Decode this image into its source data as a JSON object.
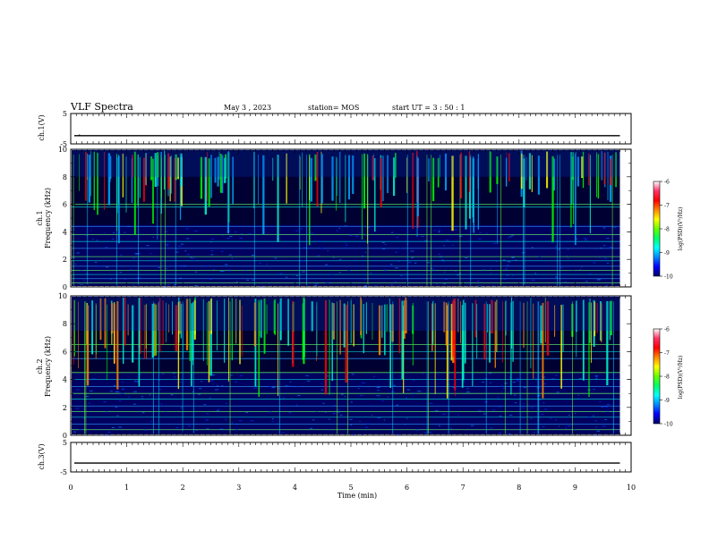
{
  "header": {
    "title": "VLF Spectra",
    "date": "May 3  , 2023",
    "station": "station= MOS",
    "start": "start  UT  =   3  : 50 : 1"
  },
  "chart_data": {
    "type": "heatmap",
    "title": "VLF Spectra",
    "xlabel": "Time  (min)",
    "xlim": [
      0,
      10
    ],
    "x_ticks": [
      "0",
      "1",
      "2",
      "3",
      "4",
      "5",
      "6",
      "7",
      "8",
      "9",
      "10"
    ],
    "data_end_min": 9.8,
    "panels": [
      {
        "name": "ch1-voltage",
        "ylabel": "ch.1(V)",
        "ylim": [
          -5,
          5
        ],
        "y_ticks": [
          "5",
          "-5"
        ],
        "level": -2.3,
        "marker": "•"
      },
      {
        "name": "ch1-spectrogram",
        "ylabel_line1": "ch.1",
        "ylabel_line2": "Frequency (kHz)",
        "ylim": [
          0,
          10
        ],
        "y_ticks": [
          "0",
          "2",
          "4",
          "6",
          "8",
          "10"
        ],
        "colorbar": {
          "label": "log(PSD)(V²/Hz)",
          "range": [
            -10,
            -6
          ],
          "ticks": [
            "-6",
            "-7",
            "-8",
            "-9",
            "-10"
          ]
        },
        "band_low_khz": 5.5,
        "line_freqs_khz": [
          0.3,
          0.6,
          0.9,
          1.2,
          1.5,
          1.9,
          2.2,
          2.8,
          3.3,
          3.8,
          4.4,
          5.8,
          6.0
        ]
      },
      {
        "name": "ch2-spectrogram",
        "ylabel_line1": "ch.2",
        "ylabel_line2": "Frequency (kHz)",
        "ylim": [
          0,
          10
        ],
        "y_ticks": [
          "0",
          "2",
          "4",
          "6",
          "8",
          "10"
        ],
        "colorbar": {
          "label": "log(PSD)(V²/Hz)",
          "range": [
            -10,
            -6
          ],
          "ticks": [
            "-6",
            "-7",
            "-8",
            "-9",
            "-10"
          ]
        },
        "band_low_khz": 5.0,
        "line_freqs_khz": [
          0.4,
          0.8,
          1.3,
          1.7,
          2.1,
          2.6,
          3.0,
          3.5,
          4.0,
          4.5,
          5.5,
          6.0,
          6.5
        ]
      },
      {
        "name": "ch3-voltage",
        "ylabel": "ch.3(V)",
        "ylim": [
          -5,
          5
        ],
        "y_ticks": [
          "5",
          "-5"
        ],
        "level": -2.0
      }
    ],
    "colormap": [
      "#000066",
      "#0000ff",
      "#00aaff",
      "#00ffcc",
      "#00ff00",
      "#aaff00",
      "#ffff00",
      "#ff8800",
      "#ff0000",
      "#ff3366",
      "#ffffff"
    ]
  }
}
